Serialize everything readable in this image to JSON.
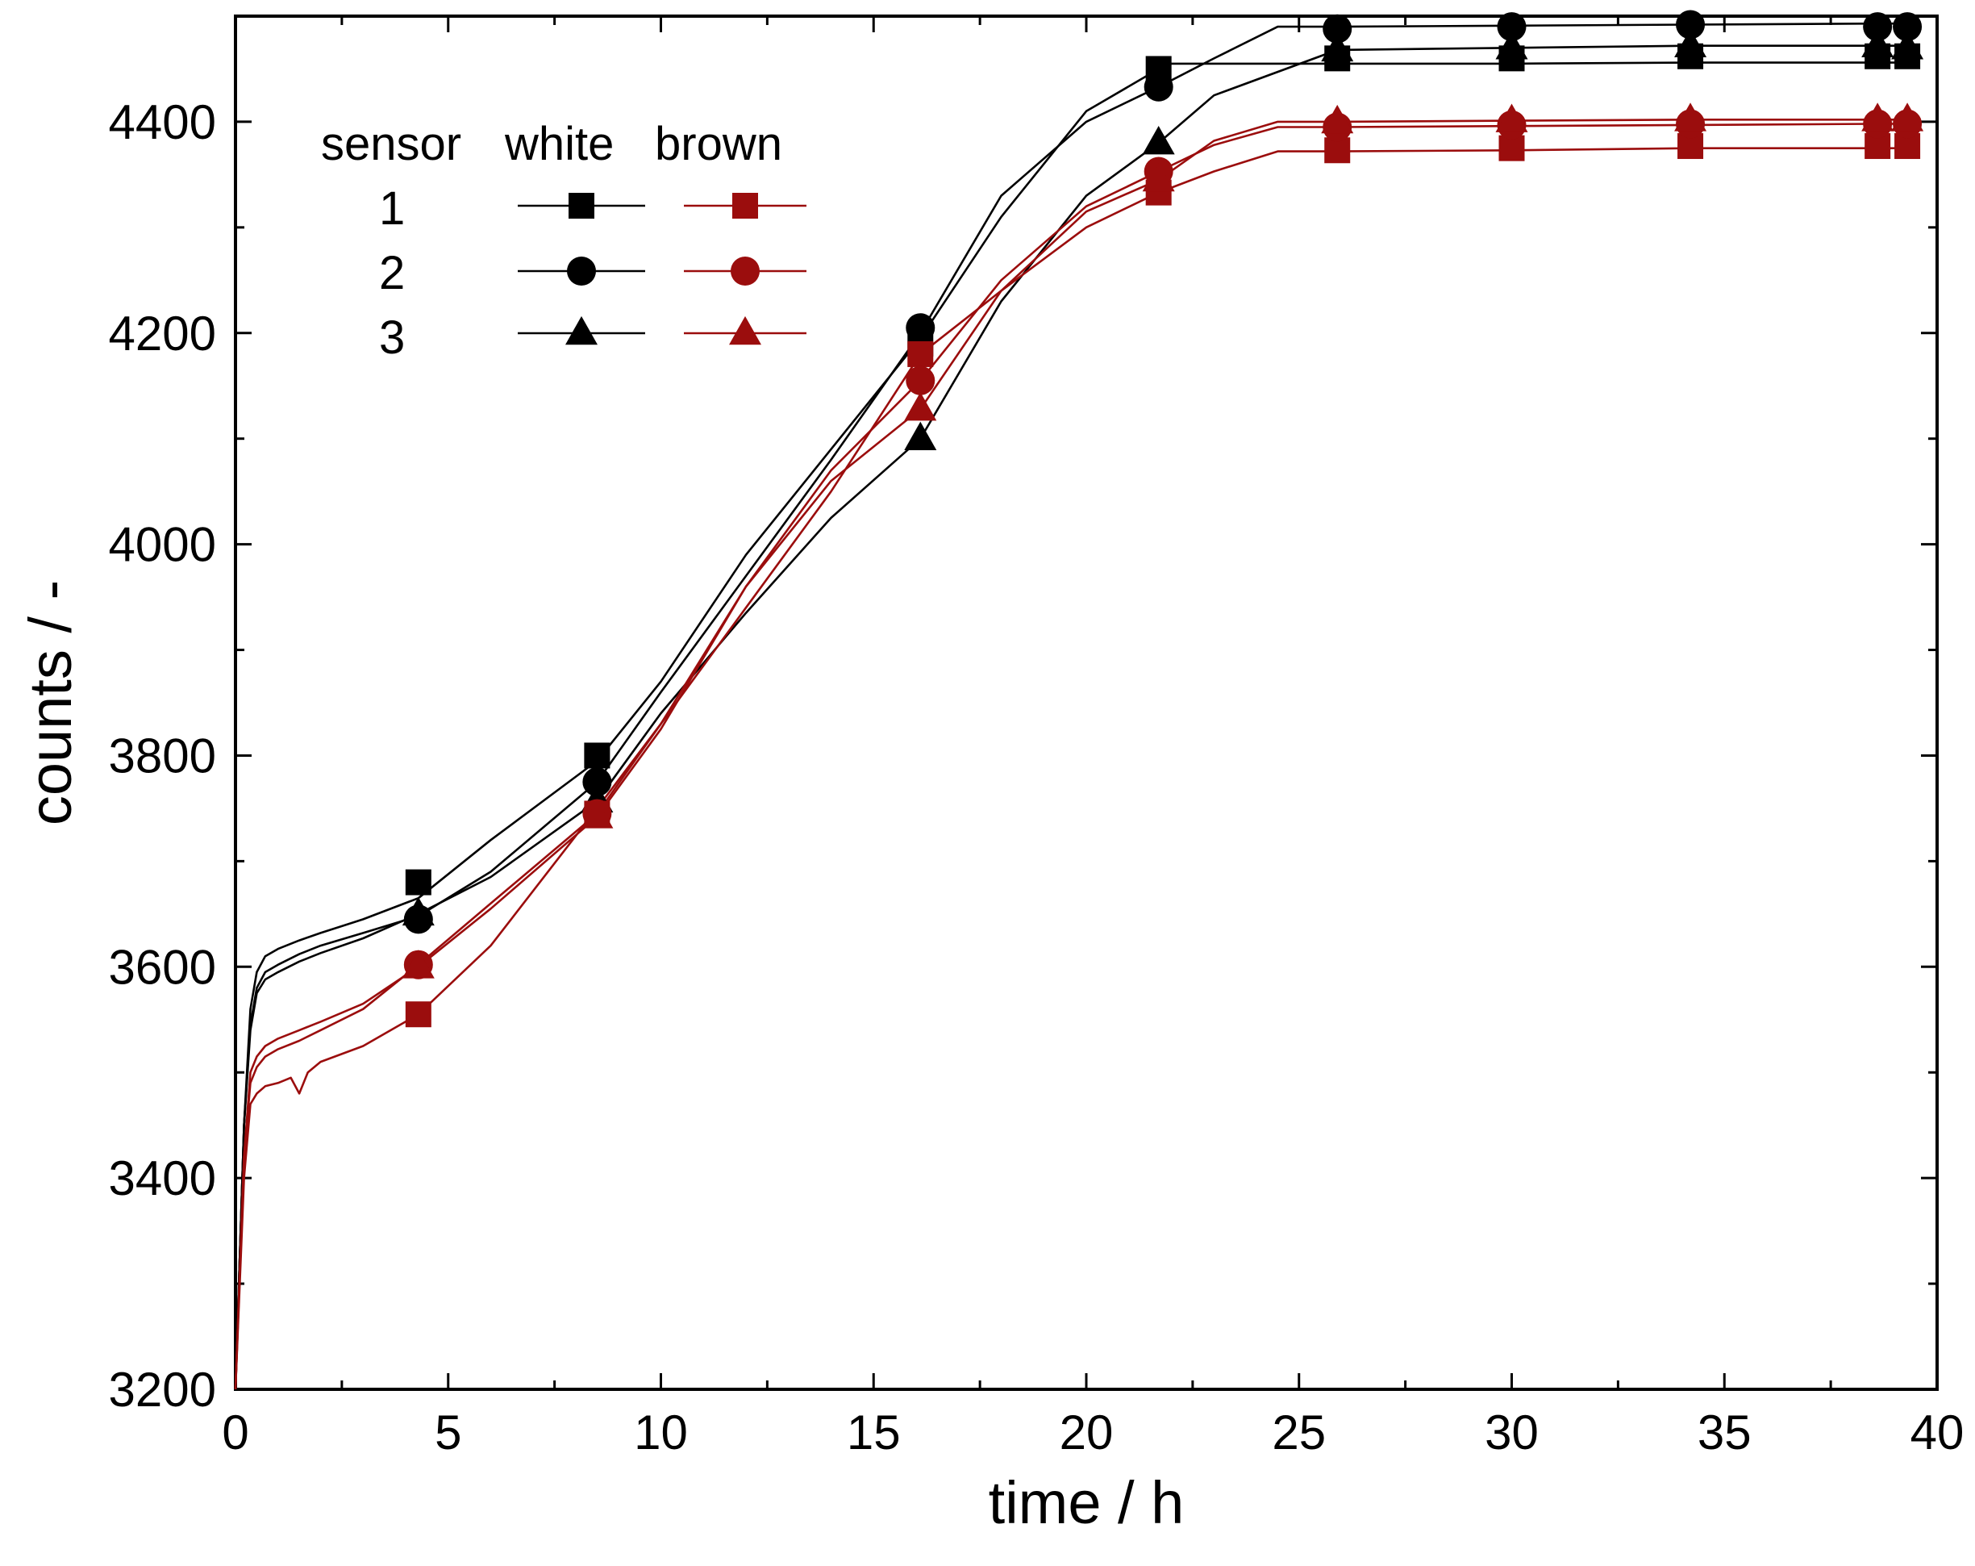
{
  "chart_data": {
    "type": "line",
    "title": "",
    "xlabel": "time / h",
    "ylabel": "counts / -",
    "xlim": [
      0,
      40
    ],
    "ylim": [
      3200,
      4500
    ],
    "xticks": [
      0,
      5,
      10,
      15,
      20,
      25,
      30,
      35,
      40
    ],
    "xtick_labels": [
      "0",
      "5",
      "10",
      "15",
      "20",
      "25",
      "30",
      "35",
      "40"
    ],
    "yticks": [
      3200,
      3400,
      3600,
      3800,
      4000,
      4200,
      4400
    ],
    "ytick_labels": [
      "3200",
      "3400",
      "3600",
      "3800",
      "4000",
      "4200",
      "4400"
    ],
    "grid": false,
    "colors": {
      "white": "#000000",
      "brown": "#9b0d0d"
    },
    "legend": {
      "placement": "top-left",
      "header": [
        "sensor",
        "white",
        "brown"
      ],
      "rows": [
        {
          "label": "1",
          "marker": "square"
        },
        {
          "label": "2",
          "marker": "circle"
        },
        {
          "label": "3",
          "marker": "triangle"
        }
      ]
    },
    "series": [
      {
        "name": "white sensor 1",
        "group": "white",
        "marker": "square",
        "x": [
          0,
          0.2,
          0.35,
          0.5,
          0.7,
          1.0,
          1.5,
          2,
          3,
          4.3,
          6,
          8.5,
          10,
          12,
          14,
          16.1,
          18,
          20,
          21.7,
          22,
          25.9,
          30,
          34.2,
          38.6,
          39.3
        ],
        "y": [
          3200,
          3450,
          3560,
          3595,
          3610,
          3617,
          3625,
          3632,
          3645,
          3665,
          3720,
          3795,
          3870,
          3990,
          4090,
          4195,
          4310,
          4410,
          4450,
          4455,
          4455,
          4455,
          4456,
          4456,
          4456
        ],
        "marker_x": [
          4.3,
          8.5,
          16.1,
          21.7,
          25.9,
          30,
          34.2,
          38.6,
          39.3
        ],
        "marker_y": [
          3680,
          3800,
          4190,
          4450,
          4460,
          4460,
          4462,
          4462,
          4462
        ]
      },
      {
        "name": "white sensor 2",
        "group": "white",
        "marker": "circle",
        "x": [
          0,
          0.2,
          0.35,
          0.5,
          0.7,
          1.0,
          1.5,
          2,
          3,
          4.3,
          6,
          8.5,
          10,
          12,
          14,
          16.1,
          18,
          20,
          21.7,
          23,
          24.5,
          25.9,
          30,
          34.2,
          38.6,
          39.3
        ],
        "y": [
          3200,
          3450,
          3545,
          3580,
          3595,
          3602,
          3612,
          3620,
          3632,
          3648,
          3690,
          3775,
          3860,
          3970,
          4080,
          4200,
          4330,
          4400,
          4433,
          4460,
          4490,
          4490,
          4491,
          4492,
          4493,
          4493
        ],
        "marker_x": [
          4.3,
          8.5,
          16.1,
          21.7,
          25.9,
          30,
          34.2,
          38.6,
          39.3
        ],
        "marker_y": [
          3645,
          3775,
          4205,
          4433,
          4488,
          4490,
          4492,
          4490,
          4490
        ]
      },
      {
        "name": "white sensor 3",
        "group": "white",
        "marker": "triangle",
        "x": [
          0,
          0.2,
          0.35,
          0.5,
          0.7,
          1.0,
          1.5,
          2,
          3,
          4.3,
          6,
          8.5,
          10,
          12,
          14,
          16.1,
          18,
          20,
          21.7,
          23,
          25.9,
          30,
          34.2,
          38.6,
          39.3
        ],
        "y": [
          3200,
          3450,
          3540,
          3575,
          3588,
          3595,
          3605,
          3613,
          3627,
          3650,
          3685,
          3757,
          3840,
          3935,
          4025,
          4100,
          4230,
          4330,
          4380,
          4425,
          4468,
          4470,
          4472,
          4472,
          4472
        ],
        "marker_x": [
          4.3,
          8.5,
          16.1,
          21.7,
          25.9,
          30,
          34.2,
          38.6,
          39.3
        ],
        "marker_y": [
          3650,
          3757,
          4100,
          4380,
          4468,
          4470,
          4472,
          4472,
          4470
        ]
      },
      {
        "name": "brown sensor 1",
        "group": "brown",
        "marker": "square",
        "x": [
          0,
          0.2,
          0.35,
          0.5,
          0.7,
          1.0,
          1.3,
          1.5,
          1.7,
          2,
          3,
          4.3,
          6,
          8.5,
          10,
          12,
          14,
          16.1,
          18,
          20,
          21.7,
          23,
          24.5,
          25.9,
          30,
          34.2,
          38.6,
          39.3
        ],
        "y": [
          3200,
          3400,
          3470,
          3480,
          3487,
          3490,
          3495,
          3480,
          3500,
          3510,
          3525,
          3555,
          3620,
          3750,
          3830,
          3940,
          4050,
          4180,
          4240,
          4300,
          4333,
          4353,
          4372,
          4372,
          4373,
          4375,
          4375,
          4375
        ],
        "marker_x": [
          4.3,
          8.5,
          16.1,
          21.7,
          25.9,
          30,
          34.2,
          38.6,
          39.3
        ],
        "marker_y": [
          3555,
          3745,
          4180,
          4333,
          4373,
          4375,
          4377,
          4377,
          4377
        ]
      },
      {
        "name": "brown sensor 2",
        "group": "brown",
        "marker": "circle",
        "x": [
          0,
          0.2,
          0.35,
          0.5,
          0.7,
          1.0,
          1.5,
          2,
          3,
          4.3,
          6,
          8.5,
          10,
          12,
          14,
          16.1,
          18,
          20,
          21.7,
          23,
          24.5,
          25.9,
          30,
          34.2,
          38.6,
          39.3
        ],
        "y": [
          3200,
          3420,
          3490,
          3505,
          3515,
          3522,
          3530,
          3540,
          3560,
          3602,
          3660,
          3745,
          3830,
          3960,
          4070,
          4155,
          4250,
          4320,
          4353,
          4378,
          4395,
          4395,
          4396,
          4397,
          4398,
          4398
        ],
        "marker_x": [
          4.3,
          8.5,
          16.1,
          21.7,
          25.9,
          30,
          34.2,
          38.6,
          39.3
        ],
        "marker_y": [
          3602,
          3745,
          4155,
          4353,
          4395,
          4397,
          4398,
          4398,
          4398
        ]
      },
      {
        "name": "brown sensor 3",
        "group": "brown",
        "marker": "triangle",
        "x": [
          0,
          0.2,
          0.35,
          0.5,
          0.7,
          1.0,
          1.5,
          2,
          3,
          4.3,
          6,
          8.5,
          10,
          12,
          14,
          16.1,
          18,
          20,
          21.7,
          23,
          24.5,
          25.9,
          30,
          34.2,
          38.6,
          39.3
        ],
        "y": [
          3200,
          3420,
          3500,
          3515,
          3525,
          3532,
          3540,
          3548,
          3565,
          3600,
          3655,
          3742,
          3825,
          3960,
          4060,
          4128,
          4240,
          4315,
          4345,
          4382,
          4400,
          4400,
          4401,
          4402,
          4402,
          4402
        ],
        "marker_x": [
          4.3,
          8.5,
          16.1,
          21.7,
          25.9,
          30,
          34.2,
          38.6,
          39.3
        ],
        "marker_y": [
          3600,
          3742,
          4128,
          4345,
          4400,
          4401,
          4402,
          4402,
          4402
        ]
      }
    ]
  }
}
